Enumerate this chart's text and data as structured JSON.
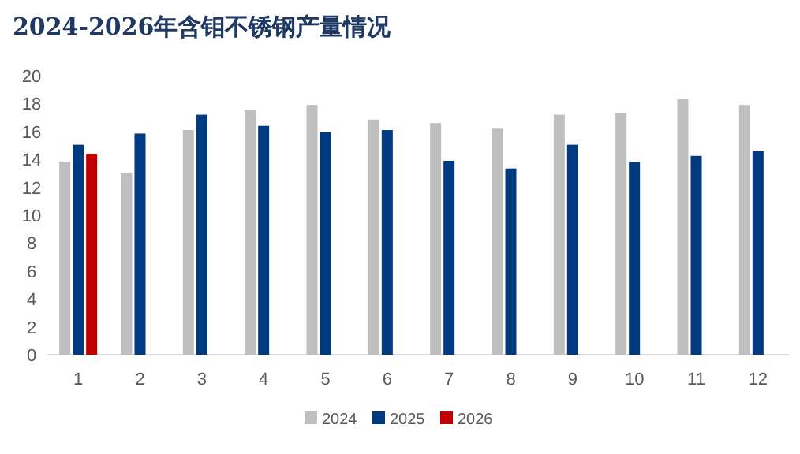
{
  "chart_data": {
    "type": "bar",
    "title": "2024-2026年含钼不锈钢产量情况",
    "categories": [
      "1",
      "2",
      "3",
      "4",
      "5",
      "6",
      "7",
      "8",
      "9",
      "10",
      "11",
      "12"
    ],
    "series": [
      {
        "name": "2024",
        "color": "#bfbfbf",
        "values": [
          13.85,
          13.0,
          16.1,
          17.55,
          17.9,
          16.85,
          16.6,
          16.2,
          17.2,
          17.3,
          18.3,
          17.9
        ]
      },
      {
        "name": "2025",
        "color": "#003a80",
        "values": [
          15.05,
          15.85,
          17.2,
          16.4,
          15.95,
          16.1,
          13.9,
          13.35,
          15.05,
          13.8,
          14.25,
          14.6
        ]
      },
      {
        "name": "2026",
        "color": "#c00000",
        "values": [
          14.4,
          null,
          null,
          null,
          null,
          null,
          null,
          null,
          null,
          null,
          null,
          null
        ]
      }
    ],
    "ylim": [
      0,
      20
    ],
    "yticks": [
      0,
      2,
      4,
      6,
      8,
      10,
      12,
      14,
      16,
      18,
      20
    ],
    "grid": false,
    "legend": "bottom"
  }
}
